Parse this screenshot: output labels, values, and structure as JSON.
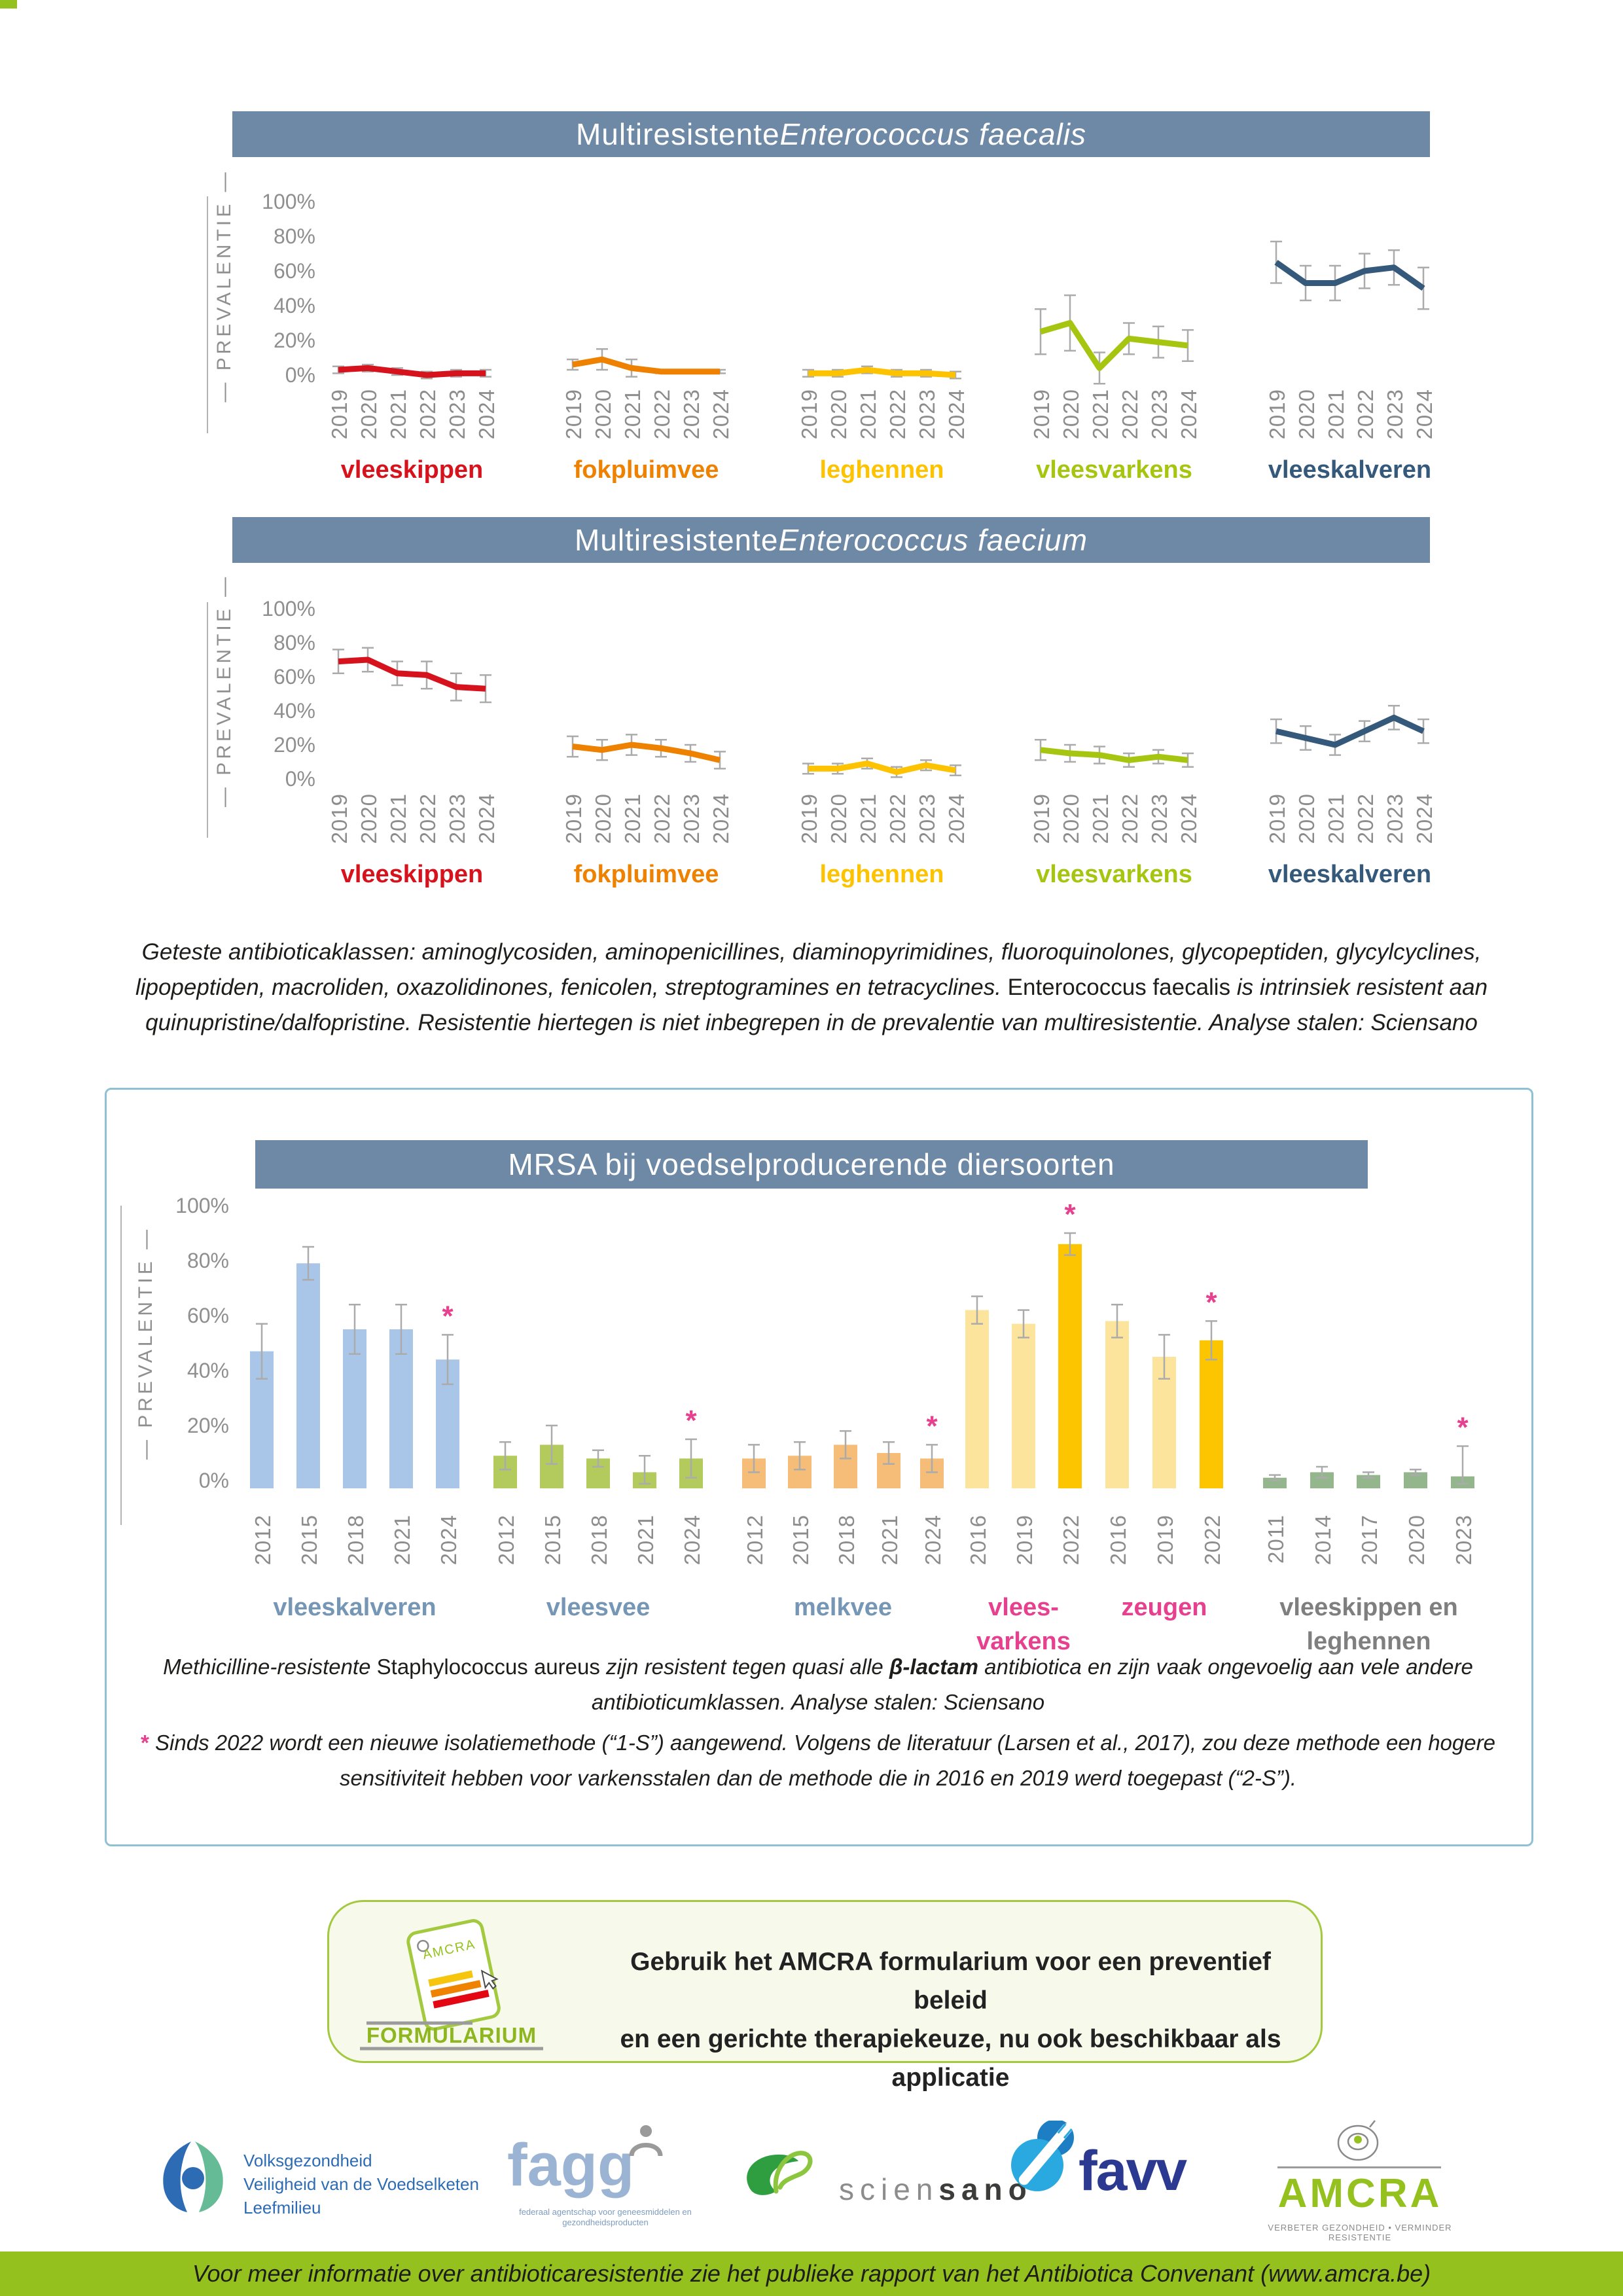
{
  "chart_data": [
    {
      "type": "line",
      "title": "Multiresistente Enterococcus faecalis",
      "title_segments": [
        {
          "t": "Multiresistente ",
          "i": false
        },
        {
          "t": "Enterococcus faecalis",
          "i": true
        }
      ],
      "ylabel": "PREVALENTIE",
      "ylim": [
        0,
        100
      ],
      "yticks": [
        {
          "v": 100,
          "label": "100%"
        },
        {
          "v": 80,
          "label": "80%"
        },
        {
          "v": 60,
          "label": "60%"
        },
        {
          "v": 40,
          "label": "40%"
        },
        {
          "v": 20,
          "label": "20%"
        },
        {
          "v": 0,
          "label": "0%"
        }
      ],
      "years": [
        "2019",
        "2020",
        "2021",
        "2022",
        "2023",
        "2024"
      ],
      "series": [
        {
          "label": "vleeskippen",
          "color": "#d6131c",
          "values": [
            3,
            4,
            2,
            0,
            1,
            1
          ],
          "errors": [
            2,
            2,
            2,
            2,
            2,
            2
          ]
        },
        {
          "label": "fokpluimvee",
          "color": "#ee8100",
          "values": [
            6,
            9,
            4,
            2,
            2,
            2
          ],
          "errors": [
            3,
            6,
            5,
            1,
            1,
            1
          ]
        },
        {
          "label": "leghennen",
          "color": "#fdc300",
          "values": [
            1,
            1,
            3,
            1,
            1,
            0
          ],
          "errors": [
            2,
            2,
            2,
            2,
            2,
            2
          ]
        },
        {
          "label": "vleesvarkens",
          "color": "#a6c510",
          "values": [
            25,
            30,
            4,
            21,
            19,
            17
          ],
          "errors": [
            13,
            16,
            9,
            9,
            9,
            9
          ]
        },
        {
          "label": "vleeskalveren",
          "color": "#35597b",
          "values": [
            65,
            53,
            53,
            60,
            62,
            50
          ],
          "errors": [
            12,
            10,
            10,
            10,
            10,
            12
          ]
        }
      ]
    },
    {
      "type": "line",
      "title": "Multiresistente Enterococcus faecium",
      "title_segments": [
        {
          "t": "Multiresistente ",
          "i": false
        },
        {
          "t": "Enterococcus faecium",
          "i": true
        }
      ],
      "ylabel": "PREVALENTIE",
      "ylim": [
        0,
        100
      ],
      "yticks": [
        {
          "v": 100,
          "label": "100%"
        },
        {
          "v": 80,
          "label": "80%"
        },
        {
          "v": 60,
          "label": "60%"
        },
        {
          "v": 40,
          "label": "40%"
        },
        {
          "v": 20,
          "label": "20%"
        },
        {
          "v": 0,
          "label": "0%"
        }
      ],
      "years": [
        "2019",
        "2020",
        "2021",
        "2022",
        "2023",
        "2024"
      ],
      "series": [
        {
          "label": "vleeskippen",
          "color": "#d6131c",
          "values": [
            69,
            70,
            62,
            61,
            54,
            53
          ],
          "errors": [
            7,
            7,
            7,
            8,
            8,
            8
          ]
        },
        {
          "label": "fokpluimvee",
          "color": "#ee8100",
          "values": [
            19,
            17,
            20,
            18,
            15,
            11
          ],
          "errors": [
            6,
            6,
            6,
            5,
            5,
            5
          ]
        },
        {
          "label": "leghennen",
          "color": "#fdc300",
          "values": [
            6,
            6,
            9,
            4,
            8,
            5
          ],
          "errors": [
            3,
            3,
            3,
            3,
            3,
            3
          ]
        },
        {
          "label": "vleesvarkens",
          "color": "#a6c510",
          "values": [
            17,
            15,
            14,
            11,
            13,
            11
          ],
          "errors": [
            6,
            5,
            5,
            4,
            4,
            4
          ]
        },
        {
          "label": "vleeskalveren",
          "color": "#35597b",
          "values": [
            28,
            24,
            20,
            28,
            36,
            28
          ],
          "errors": [
            7,
            7,
            6,
            6,
            7,
            7
          ]
        }
      ]
    },
    {
      "type": "bar",
      "title": "MRSA bij voedselproducerende diersoorten",
      "ylabel": "PREVALENTIE",
      "ylim": [
        0,
        100
      ],
      "yticks": [
        {
          "v": 100,
          "label": "100%"
        },
        {
          "v": 80,
          "label": "80%"
        },
        {
          "v": 60,
          "label": "60%"
        },
        {
          "v": 40,
          "label": "40%"
        },
        {
          "v": 20,
          "label": "20%"
        },
        {
          "v": 0,
          "label": "0%"
        }
      ],
      "asterisk_color": "#e6408e",
      "highlight_color": "#fdc500",
      "groups": [
        {
          "label_lines": [
            "vleeskalveren"
          ],
          "label_color": "#7596b5",
          "bar_color": "#a9c6e8",
          "bars": [
            {
              "year": "2012",
              "value": 47,
              "err": 10
            },
            {
              "year": "2015",
              "value": 79,
              "err": 6
            },
            {
              "year": "2018",
              "value": 55,
              "err": 9
            },
            {
              "year": "2021",
              "value": 55,
              "err": 9
            },
            {
              "year": "2024",
              "value": 44,
              "err": 9,
              "asterisk": true
            }
          ]
        },
        {
          "label_lines": [
            "vleesvee"
          ],
          "label_color": "#7596b5",
          "bar_color": "#b3ca5c",
          "bars": [
            {
              "year": "2012",
              "value": 9,
              "err": 5
            },
            {
              "year": "2015",
              "value": 13,
              "err": 7
            },
            {
              "year": "2018",
              "value": 8,
              "err": 3
            },
            {
              "year": "2021",
              "value": 3,
              "err": 6
            },
            {
              "year": "2024",
              "value": 8,
              "err": 7,
              "asterisk": true
            }
          ]
        },
        {
          "label_lines": [
            "melkvee"
          ],
          "label_color": "#7596b5",
          "bar_color": "#f5bd77",
          "bars": [
            {
              "year": "2012",
              "value": 8,
              "err": 5
            },
            {
              "year": "2015",
              "value": 9,
              "err": 5
            },
            {
              "year": "2018",
              "value": 13,
              "err": 5
            },
            {
              "year": "2021",
              "value": 10,
              "err": 4
            },
            {
              "year": "2024",
              "value": 8,
              "err": 5,
              "asterisk": true
            }
          ]
        },
        {
          "label_lines": [
            "vlees-",
            "varkens"
          ],
          "label_color": "#e6408e",
          "bar_color": "#fde49c",
          "bars": [
            {
              "year": "2016",
              "value": 62,
              "err": 5
            },
            {
              "year": "2019",
              "value": 57,
              "err": 5
            },
            {
              "year": "2022",
              "value": 86,
              "err": 4,
              "highlight": true,
              "asterisk": true
            }
          ]
        },
        {
          "label_lines": [
            "zeugen"
          ],
          "label_color": "#e6408e",
          "bar_color": "#fde49c",
          "bars": [
            {
              "year": "2016",
              "value": 58,
              "err": 6
            },
            {
              "year": "2019",
              "value": 45,
              "err": 8
            },
            {
              "year": "2022",
              "value": 51,
              "err": 7,
              "highlight": true,
              "asterisk": true
            }
          ]
        },
        {
          "label_lines": [
            "vleeskippen en",
            "leghennen"
          ],
          "label_color": "#7f7f7f",
          "bar_color": "#93b68c",
          "bars": [
            {
              "year": "2011",
              "value": 1,
              "err": 1
            },
            {
              "year": "2014",
              "value": 3,
              "err": 2
            },
            {
              "year": "2017",
              "value": 2,
              "err": 1
            },
            {
              "year": "2020",
              "value": 3,
              "err": 1
            },
            {
              "year": "2023",
              "value": 1.5,
              "err": 11,
              "asterisk": true
            }
          ]
        }
      ],
      "caption1": [
        {
          "t": "Methicilline-resistente ",
          "i": true
        },
        {
          "t": "Staphylococcus aureus",
          "i": false
        },
        {
          "t": " zijn resistent tegen quasi alle ",
          "i": true
        },
        {
          "t": "β-lactam",
          "i": true,
          "b": true
        },
        {
          "t": " antibiotica en zijn vaak ongevoelig aan vele andere antibioticumklassen. Analyse stalen: Sciensano",
          "i": true
        }
      ],
      "caption2": [
        {
          "t": "* ",
          "i": false,
          "b": true,
          "c": "#e6408e"
        },
        {
          "t": "Sinds 2022 wordt een nieuwe isolatiemethode (“1-S”) aangewend. Volgens de literatuur (Larsen et al., 2017), zou deze methode een hogere sensitiviteit hebben voor varkensstalen dan de methode die in 2016 en 2019 werd toegepast (“2-S”).",
          "i": true
        }
      ]
    }
  ],
  "notes": {
    "antibiotic_classes": [
      {
        "t": "Geteste antibioticaklassen: aminoglycosiden, aminopenicillines, diaminopyrimidines, fluoroquinolones, glycopeptiden, glycylcyclines, lipopeptiden, macroliden, oxazolidinones, fenicolen, streptogramines en tetracyclines. ",
        "i": true
      },
      {
        "t": "Enterococcus faecalis",
        "i": false
      },
      {
        "t": " is intrinsiek resistent aan quinupristine/dalfopristine. Resistentie hiertegen is niet inbegrepen in de prevalentie van multiresistentie. Analyse stalen: Sciensano",
        "i": true
      }
    ]
  },
  "formularium": {
    "icon_label": "FORMULARIUM",
    "icon_brand": "AMCRA",
    "line1": "Gebruik het AMCRA formularium voor een preventief beleid",
    "line2": "en een gerichte therapiekeuze, nu ook beschikbaar als applicatie"
  },
  "logos": {
    "health": {
      "lines": [
        "Volksgezondheid",
        "Veiligheid van de Voedselketen",
        "Leefmilieu"
      ]
    },
    "fagg": {
      "name": "fagg",
      "caption": "federaal agentschap voor geneesmiddelen en gezondheidsproducten"
    },
    "sciensano": {
      "part1": "scien",
      "part2": "sano"
    },
    "favv": {
      "name": "favv"
    },
    "amcra": {
      "name": "AMCRA",
      "tagline": "VERBETER GEZONDHEID • VERMINDER RESISTENTIE"
    }
  },
  "footer": {
    "text": "Voor meer informatie over antibioticaresistentie zie het publieke rapport van het Antibiotica Convenant (www.amcra.be)"
  }
}
